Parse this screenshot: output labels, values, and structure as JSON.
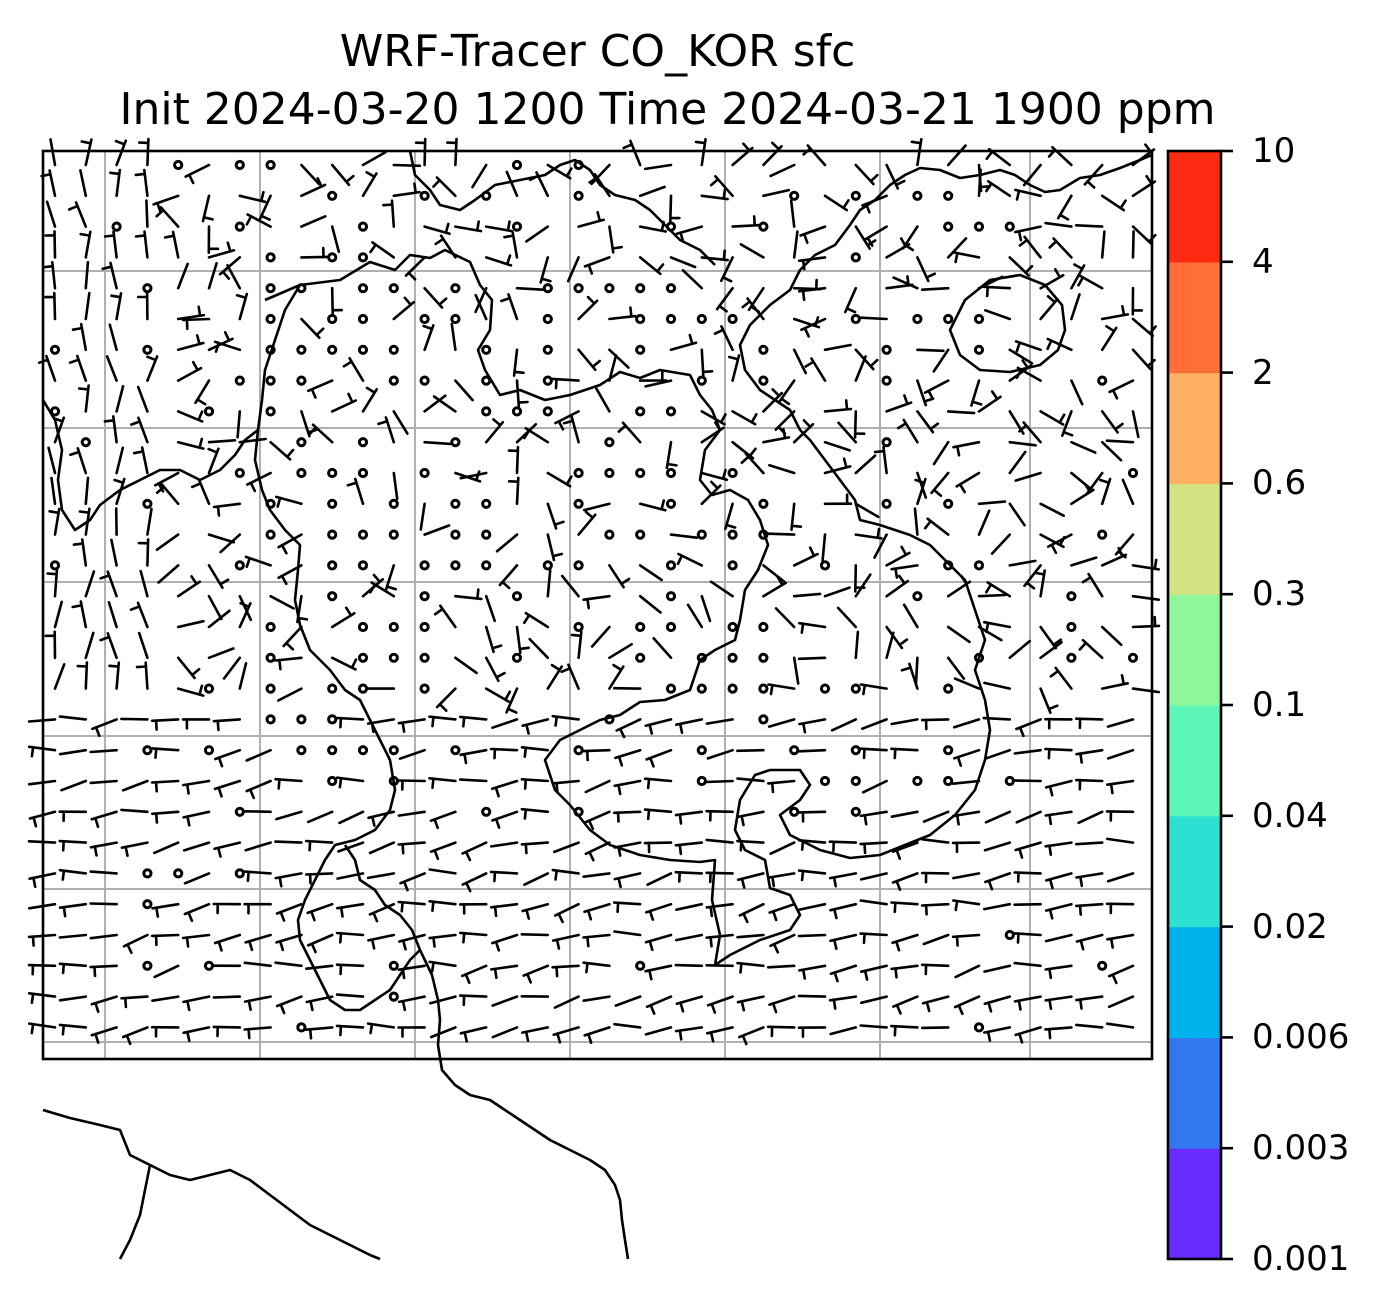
{
  "title": {
    "line1": "WRF-Tracer CO_KOR sfc",
    "line2": "Init 2024-03-20 1200 Time 2024-03-21 1900 ppm"
  },
  "colorbar": {
    "levels": [
      "0.001",
      "0.003",
      "0.006",
      "0.02",
      "0.04",
      "0.1",
      "0.3",
      "0.6",
      "2",
      "4",
      "10"
    ],
    "colors": [
      "#6a2bff",
      "#3377ee",
      "#00b2ec",
      "#2ee0d2",
      "#5cf7b8",
      "#8ef79a",
      "#d2e282",
      "#ffb062",
      "#ff6e36",
      "#ff2a12"
    ]
  },
  "map": {
    "content": "wind barbs over East Asia coastlines; no tracer shading visible",
    "grid": true
  }
}
